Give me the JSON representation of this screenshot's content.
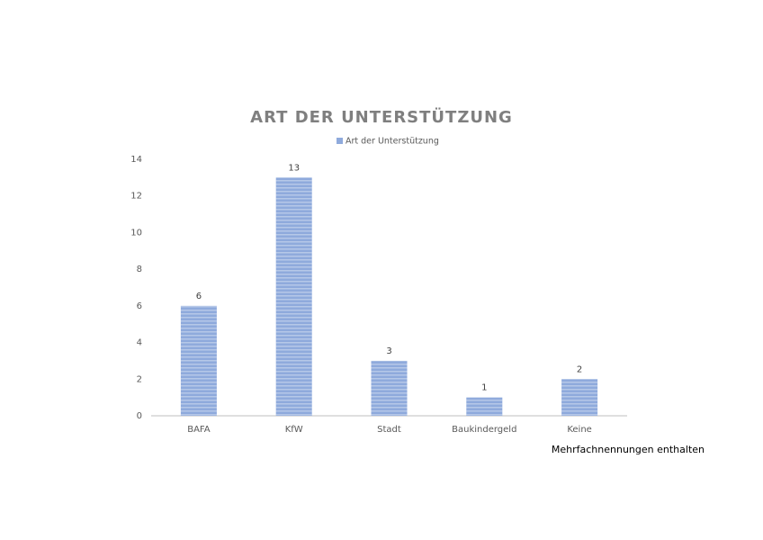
{
  "chart_data": {
    "type": "bar",
    "title": "ART DER UNTERSTÜTZUNG",
    "categories": [
      "BAFA",
      "KfW",
      "Stadt",
      "Baukindergeld",
      "Keine"
    ],
    "series": [
      {
        "name": "Art der Unterstützung",
        "color": "#8faadc",
        "values": [
          6,
          13,
          3,
          1,
          2
        ]
      }
    ],
    "ylim": [
      0,
      14
    ],
    "yticks": [
      0,
      2,
      4,
      6,
      8,
      10,
      12,
      14
    ],
    "grid": false,
    "legend": "top",
    "annotation": "Mehrfachnennungen enthalten"
  }
}
